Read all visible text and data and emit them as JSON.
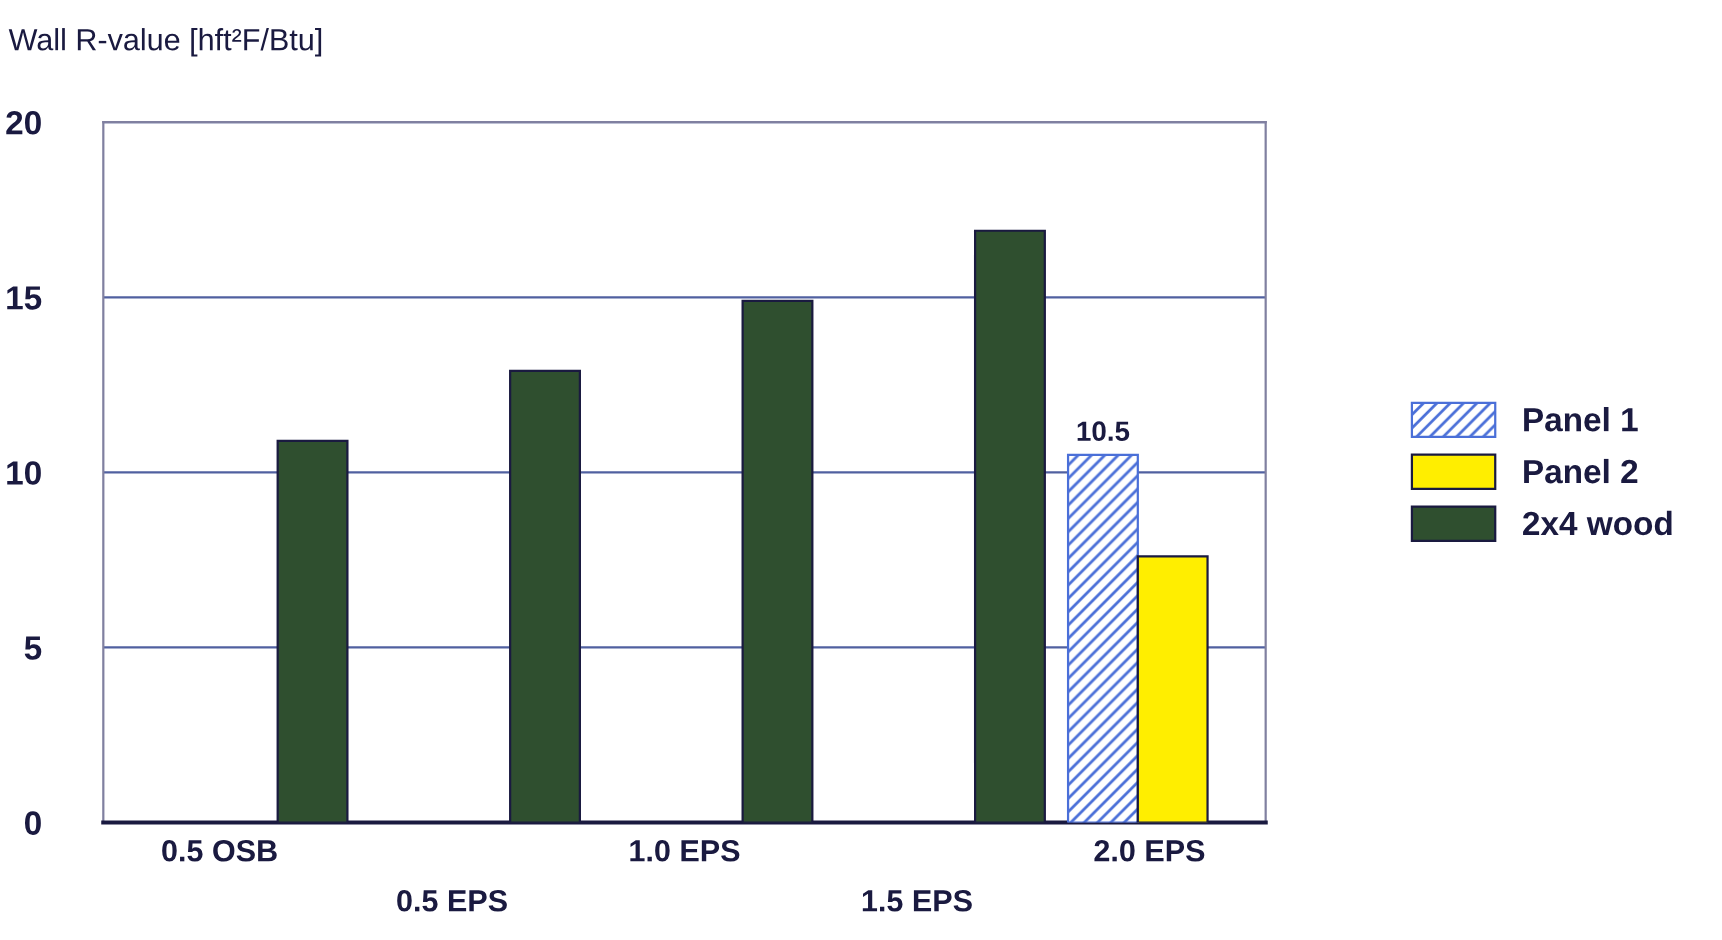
{
  "chart_data": {
    "type": "bar",
    "ylabel": "Wall R-value [hft²F/Btu]",
    "categories": [
      "0.5 OSB",
      "0.5 EPS",
      "1.0 EPS",
      "1.5 EPS",
      "2.0 EPS"
    ],
    "series": [
      {
        "name": "Panel 1",
        "color": "#4a6fd8",
        "values": [
          null,
          null,
          null,
          null,
          10.5
        ],
        "value_labels": [
          null,
          null,
          null,
          null,
          "10.5"
        ]
      },
      {
        "name": "Panel 2",
        "color": "#ffee00",
        "values": [
          null,
          null,
          null,
          null,
          7.6
        ]
      },
      {
        "name": "2x4 wood",
        "color": "#2f4f2f",
        "values": [
          10.9,
          12.9,
          14.9,
          16.9,
          null
        ]
      }
    ],
    "ylim": [
      0,
      20
    ],
    "yticks": [
      0,
      5,
      10,
      15,
      20
    ],
    "grid": "y",
    "legend": "right"
  }
}
